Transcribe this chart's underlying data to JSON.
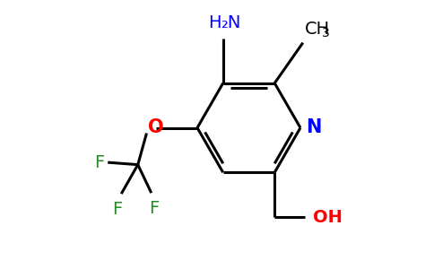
{
  "background_color": "#ffffff",
  "bond_color": "#000000",
  "nitrogen_color": "#0000ff",
  "oxygen_color": "#ff0000",
  "fluorine_color": "#228B22",
  "amino_color": "#0000ff",
  "lw": 2.2,
  "figsize": [
    4.84,
    3.0
  ],
  "dpi": 100,
  "xlim": [
    0,
    9.68
  ],
  "ylim": [
    0,
    6.0
  ]
}
